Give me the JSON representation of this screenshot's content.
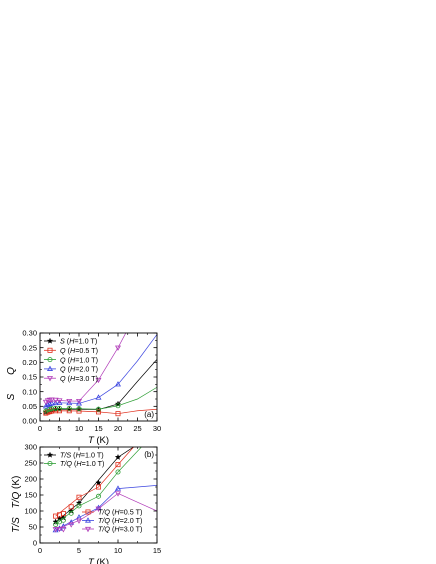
{
  "chart_data": [
    {
      "type": "scatter",
      "panel_label": "(a)",
      "xlabel_italic": "T",
      "xlabel_unit": "(K)",
      "ylabel_lines": [
        "S",
        "Q"
      ],
      "xlim": [
        0,
        30
      ],
      "ylim": [
        0,
        0.3
      ],
      "xticks": [
        "0",
        "5",
        "10",
        "15",
        "20",
        "25",
        "30"
      ],
      "yticks": [
        "0.00",
        "0.05",
        "0.10",
        "0.15",
        "0.20",
        "0.25",
        "0.30"
      ],
      "legend_position": "top-left",
      "series": [
        {
          "name": "S (H=1.0 T)",
          "name_parts": [
            "S",
            " (",
            "H",
            "=1.0 T)"
          ],
          "color": "#000000",
          "marker": "star",
          "filled": true,
          "x": [
            1.5,
            2.0,
            2.5,
            3.0,
            4.0,
            5.0,
            7.5,
            10.0,
            15.0,
            20.0
          ],
          "y": [
            0.03,
            0.033,
            0.036,
            0.038,
            0.04,
            0.04,
            0.04,
            0.04,
            0.039,
            0.058
          ],
          "fit_x": [
            1.5,
            5,
            10,
            15,
            20,
            25,
            30
          ],
          "fit_y": [
            0.03,
            0.04,
            0.04,
            0.039,
            0.058,
            0.135,
            0.21
          ]
        },
        {
          "name": "Q (H=0.5 T)",
          "name_parts": [
            "Q",
            " (",
            "H",
            "=0.5 T)"
          ],
          "color": "#e0301e",
          "marker": "square",
          "filled": false,
          "x": [
            1.5,
            2.0,
            2.5,
            3.0,
            4.0,
            5.0,
            7.5,
            10.0,
            15.0,
            20.0
          ],
          "y": [
            0.027,
            0.03,
            0.032,
            0.034,
            0.035,
            0.035,
            0.035,
            0.034,
            0.031,
            0.025
          ],
          "fit_x": [
            1.5,
            5,
            10,
            15,
            20,
            25,
            30
          ],
          "fit_y": [
            0.027,
            0.035,
            0.034,
            0.031,
            0.025,
            0.035,
            0.04
          ]
        },
        {
          "name": "Q (H=1.0 T)",
          "name_parts": [
            "Q",
            " (",
            "H",
            "=1.0 T)"
          ],
          "color": "#2e9e35",
          "marker": "circle",
          "filled": false,
          "x": [
            1.5,
            2.0,
            2.5,
            3.0,
            4.0,
            5.0,
            7.5,
            10.0,
            15.0,
            20.0
          ],
          "y": [
            0.034,
            0.038,
            0.04,
            0.042,
            0.043,
            0.043,
            0.043,
            0.042,
            0.04,
            0.052
          ],
          "fit_x": [
            1.5,
            5,
            10,
            15,
            20,
            25,
            30
          ],
          "fit_y": [
            0.034,
            0.043,
            0.042,
            0.04,
            0.052,
            0.075,
            0.115
          ]
        },
        {
          "name": "Q (H=2.0 T)",
          "name_parts": [
            "Q",
            " (",
            "H",
            "=2.0 T)"
          ],
          "color": "#3b45e0",
          "marker": "triangle-up",
          "filled": false,
          "x": [
            1.5,
            2.0,
            2.5,
            3.0,
            4.0,
            5.0,
            7.5,
            10.0,
            15.0,
            20.0
          ],
          "y": [
            0.05,
            0.055,
            0.058,
            0.06,
            0.061,
            0.062,
            0.061,
            0.06,
            0.08,
            0.125
          ],
          "fit_x": [
            1.5,
            5,
            10,
            15,
            20,
            25,
            30
          ],
          "fit_y": [
            0.05,
            0.062,
            0.06,
            0.08,
            0.125,
            0.205,
            0.295
          ]
        },
        {
          "name": "Q (H=3.0 T)",
          "name_parts": [
            "Q",
            " (",
            "H",
            "=3.0 T)"
          ],
          "color": "#b03ab8",
          "marker": "triangle-down",
          "filled": false,
          "x": [
            1.5,
            2.0,
            2.5,
            3.0,
            4.0,
            5.0,
            7.5,
            10.0,
            15.0,
            20.0
          ],
          "y": [
            0.065,
            0.07,
            0.072,
            0.073,
            0.072,
            0.07,
            0.068,
            0.068,
            0.14,
            0.25
          ],
          "fit_x": [
            1.5,
            5,
            7.5,
            10,
            15,
            20,
            22
          ],
          "fit_y": [
            0.065,
            0.07,
            0.068,
            0.068,
            0.14,
            0.25,
            0.3
          ]
        }
      ]
    },
    {
      "type": "scatter",
      "panel_label": "(b)",
      "xlabel_italic": "T",
      "xlabel_unit": "(K)",
      "ylabel_lines": [
        "T/S",
        "T/Q (K)"
      ],
      "xlim": [
        0,
        15
      ],
      "ylim": [
        0,
        300
      ],
      "xticks": [
        "0",
        "5",
        "10",
        "15"
      ],
      "yticks": [
        "0",
        "50",
        "100",
        "150",
        "200",
        "250",
        "300"
      ],
      "legend_position": "top-left and bottom-right",
      "series": [
        {
          "name": "T/S (H=1.0 T)",
          "name_parts": [
            "T/S",
            " (",
            "H",
            "=1.0 T)"
          ],
          "color": "#000000",
          "marker": "star",
          "filled": true,
          "legend": "top",
          "x": [
            2.0,
            2.5,
            3.0,
            4.0,
            5.0,
            7.5,
            10.0
          ],
          "y": [
            66,
            76,
            79,
            100,
            125,
            188,
            268
          ],
          "fit_x": [
            2,
            5,
            10,
            12
          ],
          "fit_y": [
            66,
            125,
            268,
            300
          ]
        },
        {
          "name": "T/Q (H=1.0 T)",
          "name_parts": [
            "T/Q",
            " (",
            "H",
            "=1.0 T)"
          ],
          "color": "#2e9e35",
          "marker": "circle",
          "filled": false,
          "legend": "top",
          "x": [
            2.0,
            2.5,
            3.0,
            4.0,
            5.0,
            7.5,
            10.0
          ],
          "y": [
            58,
            66,
            71,
            93,
            116,
            146,
            222
          ],
          "fit_x": [
            2,
            5,
            7.5,
            10,
            13
          ],
          "fit_y": [
            58,
            116,
            146,
            222,
            300
          ]
        },
        {
          "name": "T/Q (H=0.5 T)",
          "name_parts": [
            "T/Q",
            " (",
            "H",
            "=0.5 T)"
          ],
          "color": "#e0301e",
          "marker": "square",
          "filled": false,
          "legend": "bottom",
          "x": [
            2.0,
            2.5,
            3.0,
            4.0,
            5.0,
            7.5,
            10.0
          ],
          "y": [
            84,
            88,
            92,
            113,
            143,
            175,
            245
          ],
          "fit_x": [
            2,
            5,
            7.5,
            10,
            12
          ],
          "fit_y": [
            84,
            143,
            175,
            245,
            300
          ]
        },
        {
          "name": "T/Q (H=2.0 T)",
          "name_parts": [
            "T/Q",
            " (",
            "H",
            "=2.0 T)"
          ],
          "color": "#3b45e0",
          "marker": "triangle-up",
          "filled": false,
          "legend": "bottom",
          "x": [
            2.0,
            2.5,
            3.0,
            4.0,
            5.0,
            7.5,
            10.0
          ],
          "y": [
            40,
            45,
            52,
            64,
            80,
            110,
            170
          ],
          "fit_x": [
            2,
            5,
            7.5,
            10,
            15
          ],
          "fit_y": [
            40,
            80,
            110,
            170,
            180
          ]
        },
        {
          "name": "T/Q (H=3.0 T)",
          "name_parts": [
            "T/Q",
            " (",
            "H",
            "=3.0 T)"
          ],
          "color": "#b03ab8",
          "marker": "triangle-down",
          "filled": false,
          "legend": "bottom",
          "x": [
            2.0,
            2.5,
            3.0,
            4.0,
            5.0,
            7.5,
            10.0
          ],
          "y": [
            43,
            44,
            43,
            58,
            70,
            107,
            155
          ],
          "fit_x": [
            2,
            5,
            7.5,
            10,
            15
          ],
          "fit_y": [
            43,
            70,
            107,
            155,
            100
          ]
        }
      ]
    }
  ]
}
